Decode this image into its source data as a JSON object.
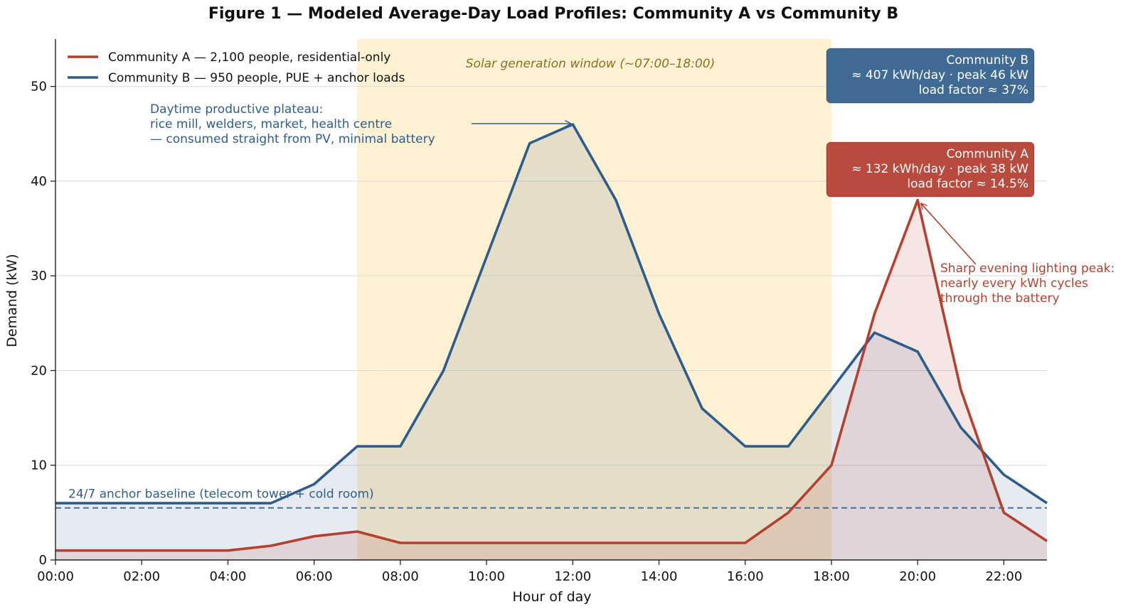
{
  "chart_data": {
    "type": "line",
    "title": "Figure 1 — Modeled Average-Day Load Profiles: Community A vs Community B",
    "xlabel": "Hour of day",
    "ylabel": "Demand (kW)",
    "xlim": [
      0,
      23
    ],
    "ylim": [
      0,
      55
    ],
    "x_tick_labels": [
      "00:00",
      "02:00",
      "04:00",
      "06:00",
      "08:00",
      "10:00",
      "12:00",
      "14:00",
      "16:00",
      "18:00",
      "20:00",
      "22:00"
    ],
    "y_ticks": [
      0,
      10,
      20,
      30,
      40,
      50
    ],
    "grid": "horizontal",
    "legend_position": "top-left",
    "x": [
      0,
      1,
      2,
      3,
      4,
      5,
      6,
      7,
      8,
      9,
      10,
      11,
      12,
      13,
      14,
      15,
      16,
      17,
      18,
      19,
      20,
      21,
      22,
      23
    ],
    "series": [
      {
        "name": "Community A — 2,100 people, residential-only",
        "color": "#b5402f",
        "values": [
          1,
          1,
          1,
          1,
          1,
          1.5,
          2.5,
          3,
          1.8,
          1.8,
          1.8,
          1.8,
          1.8,
          1.8,
          1.8,
          1.8,
          1.8,
          5,
          10,
          26,
          38,
          18,
          5,
          2
        ]
      },
      {
        "name": "Community B — 950 people, PUE + anchor loads",
        "color": "#2e5d8c",
        "values": [
          6,
          6,
          6,
          6,
          6,
          6,
          8,
          12,
          12,
          20,
          32,
          44,
          46,
          38,
          26,
          16,
          12,
          12,
          18,
          24,
          22,
          14,
          9,
          6
        ]
      }
    ],
    "solar_window": {
      "start": 7,
      "end": 18,
      "label": "Solar generation window (~07:00–18:00)",
      "color": "#fdf1d2"
    },
    "baseline": {
      "value": 5.5,
      "label": "24/7 anchor baseline (telecom tower + cold room)",
      "color": "#2e5d8c"
    },
    "annotations": {
      "plateau": {
        "lines": [
          "Daytime productive plateau:",
          "rice mill, welders, market, health centre",
          "— consumed straight from PV, minimal battery"
        ],
        "target": [
          12,
          46
        ],
        "color": "#2e5d8c"
      },
      "evening_peak": {
        "lines": [
          "Sharp evening lighting peak:",
          "nearly every kWh cycles",
          "through the battery"
        ],
        "target": [
          20,
          38
        ],
        "color": "#b5402f"
      },
      "box_b": {
        "lines": [
          "Community B",
          "≈ 407 kWh/day · peak 46 kW",
          "load factor ≈ 37%"
        ],
        "color": "#3f6a93"
      },
      "box_a": {
        "lines": [
          "Community A",
          "≈ 132 kWh/day · peak 38 kW",
          "load factor ≈ 14.5%"
        ],
        "color": "#b84a3e"
      }
    }
  }
}
